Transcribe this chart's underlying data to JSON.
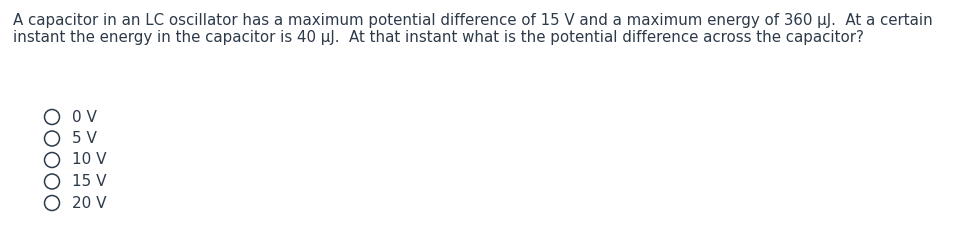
{
  "question": "A capacitor in an LC oscillator has a maximum potential difference of 15 V and a maximum energy of 360 μJ.  At a certain instant the energy in the capacitor is 40 μJ.  At that instant what is the potential difference across the capacitor?",
  "options": [
    "0 V",
    "5 V",
    "10 V",
    "15 V",
    "20 V"
  ],
  "background_color": "#ffffff",
  "text_color": "#2d3a4a",
  "font_size_question": 10.8,
  "font_size_options": 11.0,
  "fig_width": 9.64,
  "fig_height": 2.47,
  "dpi": 100
}
